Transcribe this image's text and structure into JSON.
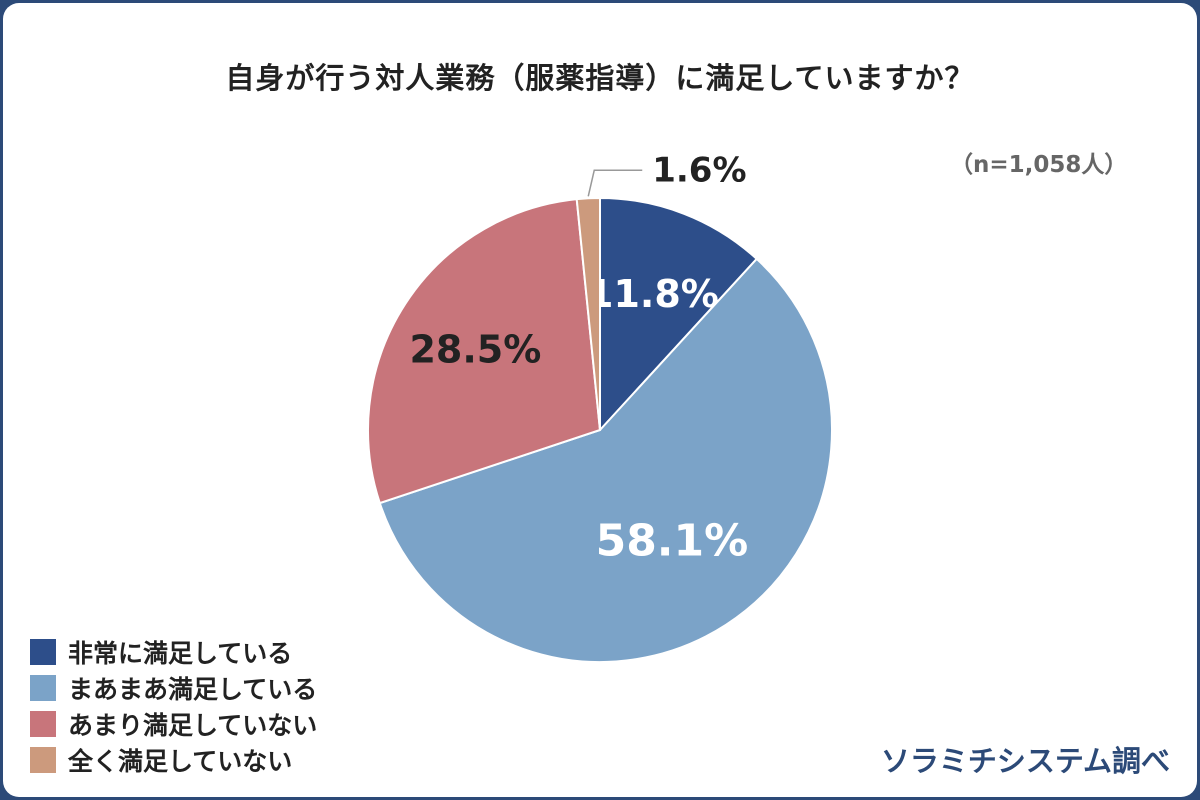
{
  "chart_data": {
    "type": "pie",
    "title": "自身が行う対人業務（服薬指導）に満足していますか？",
    "sample_size": "（n=1,058人）",
    "source": "ソラミチシステム調べ",
    "slices": [
      {
        "name": "非常に満足している",
        "value": 11.8,
        "label": "11.8%",
        "color": "#2d4e8a",
        "label_color": "#ffffff"
      },
      {
        "name": "まあまあ満足している",
        "value": 58.1,
        "label": "58.1%",
        "color": "#7ba3c8",
        "label_color": "#ffffff"
      },
      {
        "name": "あまり満足していない",
        "value": 28.5,
        "label": "28.5%",
        "color": "#c8757b",
        "label_color": "#222222"
      },
      {
        "name": "全く満足していない",
        "value": 1.6,
        "label": "1.6%",
        "color": "#cc9a7d",
        "label_color": "#222222"
      }
    ]
  }
}
